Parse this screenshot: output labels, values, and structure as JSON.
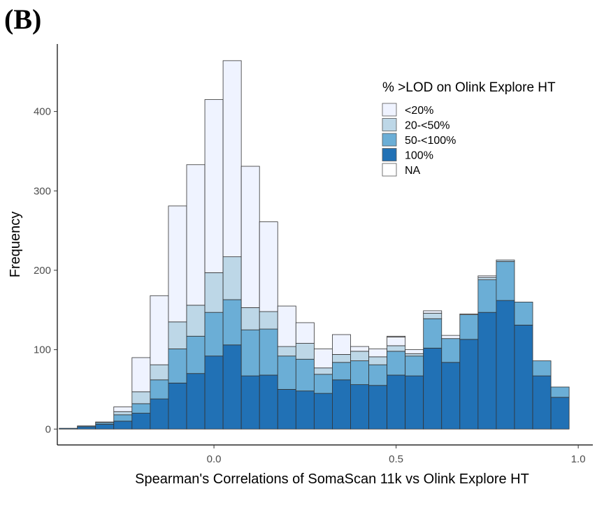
{
  "panel_label": "(B)",
  "chart_data": {
    "type": "bar",
    "stacked": true,
    "xlabel": "Spearman's Correlations of SomaScan 11k vs Olink Explore HT",
    "ylabel": "Frequency",
    "xlim": [
      -0.43,
      1.04
    ],
    "ylim": [
      -20,
      485
    ],
    "x_ticks": [
      0.0,
      0.5,
      1.0
    ],
    "x_tick_labels": [
      "0.0",
      "0.5",
      "1.0"
    ],
    "y_ticks": [
      0,
      100,
      200,
      300,
      400
    ],
    "y_tick_labels": [
      "0",
      "100",
      "200",
      "300",
      "400"
    ],
    "bin_width": 0.05,
    "bin_centers": [
      -0.4,
      -0.35,
      -0.3,
      -0.25,
      -0.2,
      -0.15,
      -0.1,
      -0.05,
      0.0,
      0.05,
      0.1,
      0.15,
      0.2,
      0.25,
      0.3,
      0.35,
      0.4,
      0.45,
      0.5,
      0.55,
      0.6,
      0.65,
      0.7,
      0.75,
      0.8,
      0.85,
      0.9,
      0.95
    ],
    "grid": false,
    "legend_position": "top-right",
    "legend_title": "% >LOD on Olink Explore HT",
    "series": [
      {
        "name": "100%",
        "color": "#2171b5",
        "values": [
          1,
          3,
          6,
          10,
          20,
          38,
          58,
          70,
          92,
          106,
          67,
          68,
          50,
          48,
          45,
          62,
          56,
          55,
          68,
          67,
          102,
          84,
          113,
          147,
          162,
          131,
          67,
          40
        ]
      },
      {
        "name": "50-<100%",
        "color": "#6baed6",
        "values": [
          0,
          1,
          2,
          8,
          12,
          24,
          43,
          47,
          55,
          57,
          58,
          58,
          42,
          40,
          24,
          22,
          30,
          26,
          30,
          25,
          37,
          30,
          31,
          41,
          49,
          29,
          19,
          13
        ]
      },
      {
        "name": "20-<50%",
        "color": "#bdd7e7",
        "values": [
          0,
          0,
          1,
          4,
          15,
          19,
          34,
          39,
          50,
          54,
          28,
          22,
          12,
          20,
          8,
          10,
          12,
          10,
          7,
          3,
          7,
          0,
          0,
          3,
          2,
          0,
          0,
          0
        ]
      },
      {
        "name": "<20%",
        "color": "#eff3ff",
        "values": [
          0,
          0,
          0,
          6,
          43,
          87,
          146,
          177,
          218,
          247,
          178,
          113,
          51,
          26,
          24,
          25,
          6,
          10,
          11,
          5,
          3,
          4,
          0,
          2,
          0,
          0,
          0,
          0
        ]
      },
      {
        "name": "NA",
        "color": "#ffffff",
        "values": [
          0,
          0,
          0,
          0,
          0,
          0,
          0,
          0,
          0,
          0,
          0,
          0,
          0,
          0,
          0,
          0,
          0,
          0,
          1,
          0,
          0,
          0,
          1,
          0,
          0,
          0,
          0,
          0
        ]
      }
    ],
    "legend_order": [
      "<20%",
      "20-<50%",
      "50-<100%",
      "100%",
      "NA"
    ]
  }
}
